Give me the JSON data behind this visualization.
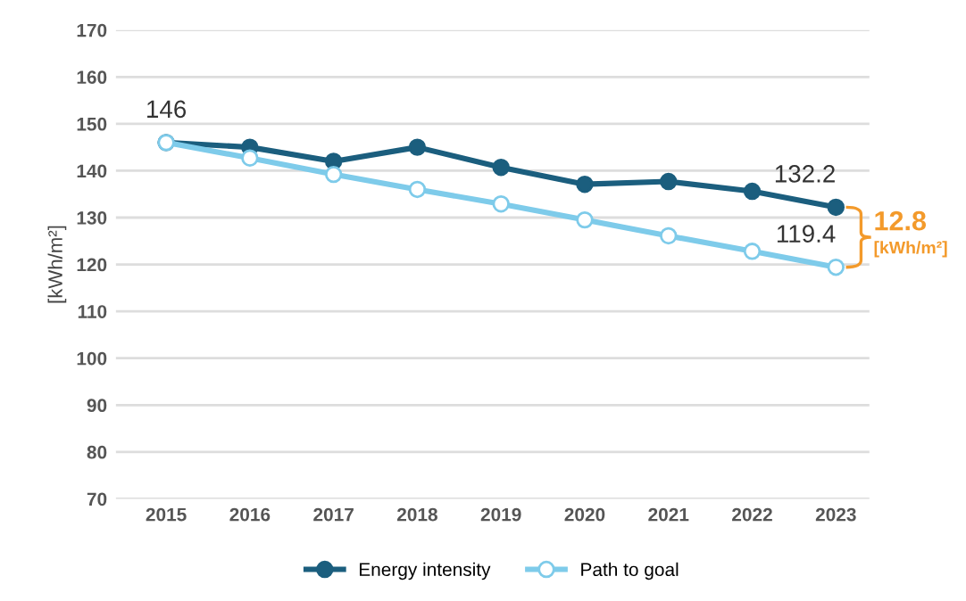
{
  "chart_data": {
    "type": "line",
    "ylabel": "[kWh/m²]",
    "categories": [
      "2015",
      "2016",
      "2017",
      "2018",
      "2019",
      "2020",
      "2021",
      "2022",
      "2023"
    ],
    "series": [
      {
        "name": "Energy intensity",
        "color": "#1b5e7e",
        "marker": "circle",
        "values": [
          146,
          145.0,
          142.0,
          145.0,
          140.7,
          137.1,
          137.7,
          135.6,
          132.2
        ],
        "value_labels": [
          "146",
          null,
          null,
          null,
          null,
          null,
          null,
          null,
          "132.2"
        ]
      },
      {
        "name": "Path to goal",
        "color": "#7ecbea",
        "marker": "circle",
        "values": [
          146,
          142.7,
          139.2,
          136.0,
          132.9,
          129.5,
          126.1,
          122.8,
          119.4
        ],
        "value_labels": [
          null,
          null,
          null,
          null,
          null,
          null,
          null,
          null,
          "119.4"
        ]
      }
    ],
    "annotations": [
      {
        "text": "12.8",
        "x": "2023",
        "y": 132.2
      },
      "[kWh/m²]"
    ],
    "ylim": [
      70,
      170
    ],
    "yticks": [
      70,
      80,
      90,
      100,
      110,
      120,
      130,
      140,
      150,
      160,
      170
    ],
    "grid": "y",
    "legend": "bottom"
  }
}
